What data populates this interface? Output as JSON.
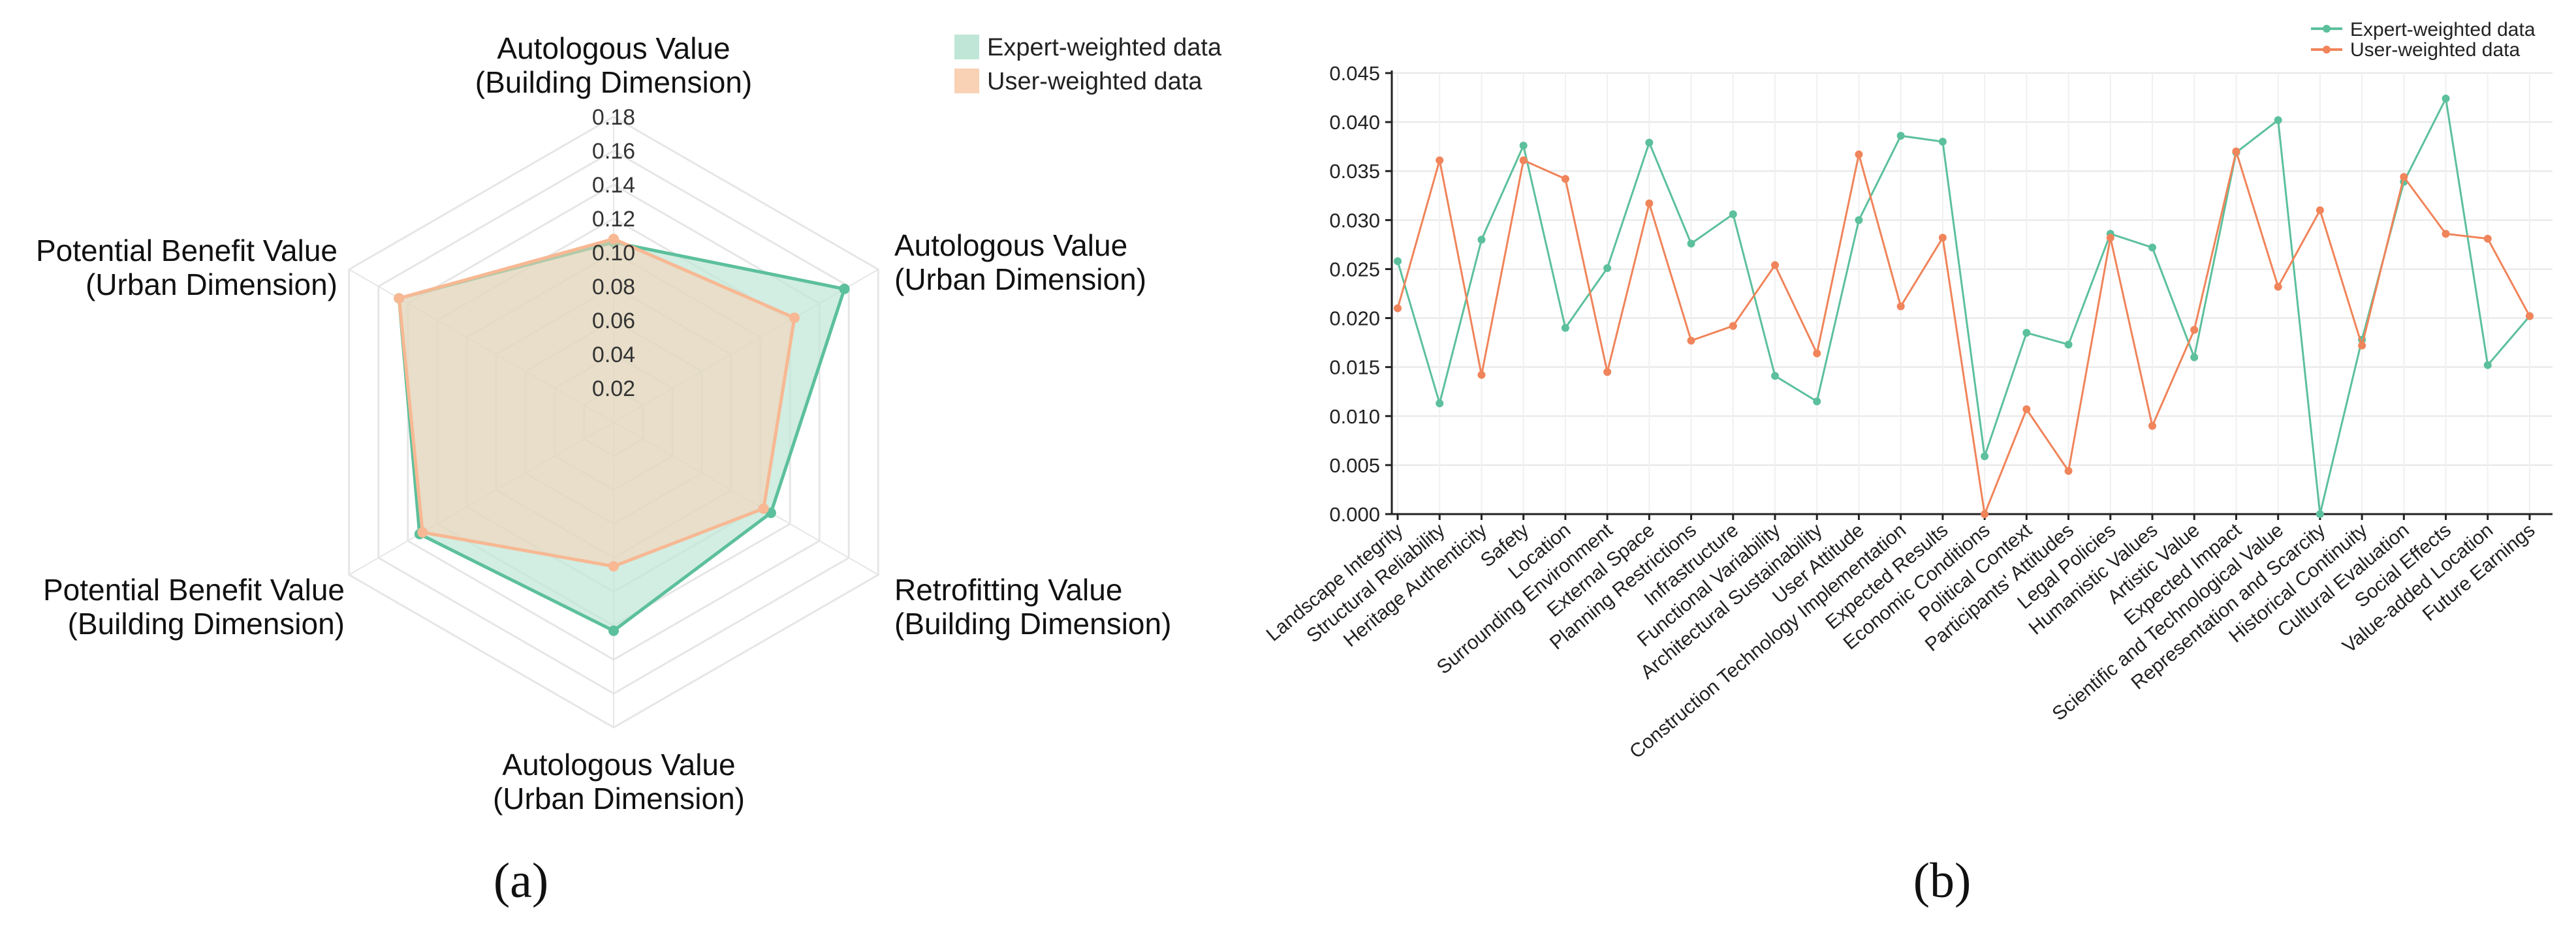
{
  "colors": {
    "expert": "#5cc09c",
    "user": "#f0845a",
    "expert_fill": "#bfe6d6",
    "user_fill": "#f9d1b5",
    "grid": "#e6e6e6",
    "axis": "#222222"
  },
  "chart_data": [
    {
      "type": "radar",
      "panel_label": "(a)",
      "axes": [
        {
          "lines": [
            "Autologous Value",
            "(Building Dimension)"
          ]
        },
        {
          "lines": [
            "Autologous Value",
            "(Urban Dimension)"
          ]
        },
        {
          "lines": [
            "Retrofitting Value",
            "(Building Dimension)"
          ]
        },
        {
          "lines": [
            "Autologous Value",
            "(Urban Dimension)"
          ]
        },
        {
          "lines": [
            "Potential Benefit Value",
            "(Building Dimension)"
          ]
        },
        {
          "lines": [
            "Potential Benefit Value",
            "(Urban Dimension)"
          ]
        }
      ],
      "rlim": [
        0,
        0.18
      ],
      "ticks": [
        "0.02",
        "0.04",
        "0.06",
        "0.08",
        "0.10",
        "0.12",
        "0.14",
        "0.16",
        "0.18"
      ],
      "series": [
        {
          "name": "Expert-weighted data",
          "values": [
            0.106,
            0.157,
            0.107,
            0.123,
            0.132,
            0.146
          ]
        },
        {
          "name": "User-weighted data",
          "values": [
            0.108,
            0.123,
            0.102,
            0.085,
            0.13,
            0.146
          ]
        }
      ]
    },
    {
      "type": "line",
      "panel_label": "(b)",
      "ylim": [
        0,
        0.045
      ],
      "yticks": [
        "0.000",
        "0.005",
        "0.010",
        "0.015",
        "0.020",
        "0.025",
        "0.030",
        "0.035",
        "0.040",
        "0.045"
      ],
      "categories": [
        "Landscape Integrity",
        "Structural Reliability",
        "Heritage Authenticity",
        "Safety",
        "Location",
        "Surrounding Environment",
        "External Space",
        "Planning Restrictions",
        "Infrastructure",
        "Functional Variability",
        "Architectural Sustainability",
        "User Attitude",
        "Construction Technology Implementation",
        "Expected Results",
        "Economic Conditions",
        "Political Context",
        "Participants' Attitudes",
        "Legal Policies",
        "Humanistic Values",
        "Artistic Value",
        "Expected Impact",
        "Scientific and Technological Value",
        "Representation and Scarcity",
        "Historical Continuity",
        "Cultural Evaluation",
        "Social Effects",
        "Value-added Location",
        "Future Earnings"
      ],
      "series": [
        {
          "name": "Expert-weighted data",
          "values": [
            0.0258,
            0.0113,
            0.028,
            0.0376,
            0.019,
            0.0251,
            0.0379,
            0.0276,
            0.0306,
            0.0141,
            0.0115,
            0.03,
            0.0386,
            0.038,
            0.0059,
            0.0185,
            0.0173,
            0.0286,
            0.0272,
            0.016,
            0.0369,
            0.0402,
            0.0,
            0.0178,
            0.0339,
            0.0424,
            0.0152,
            0.0202
          ]
        },
        {
          "name": "User-weighted data",
          "values": [
            0.021,
            0.0361,
            0.0142,
            0.0361,
            0.0342,
            0.0145,
            0.0317,
            0.0177,
            0.0192,
            0.0254,
            0.0164,
            0.0367,
            0.0212,
            0.0282,
            0.0,
            0.0107,
            0.0044,
            0.0282,
            0.009,
            0.0188,
            0.037,
            0.0232,
            0.031,
            0.0172,
            0.0344,
            0.0286,
            0.0281,
            0.0202
          ]
        }
      ]
    }
  ]
}
